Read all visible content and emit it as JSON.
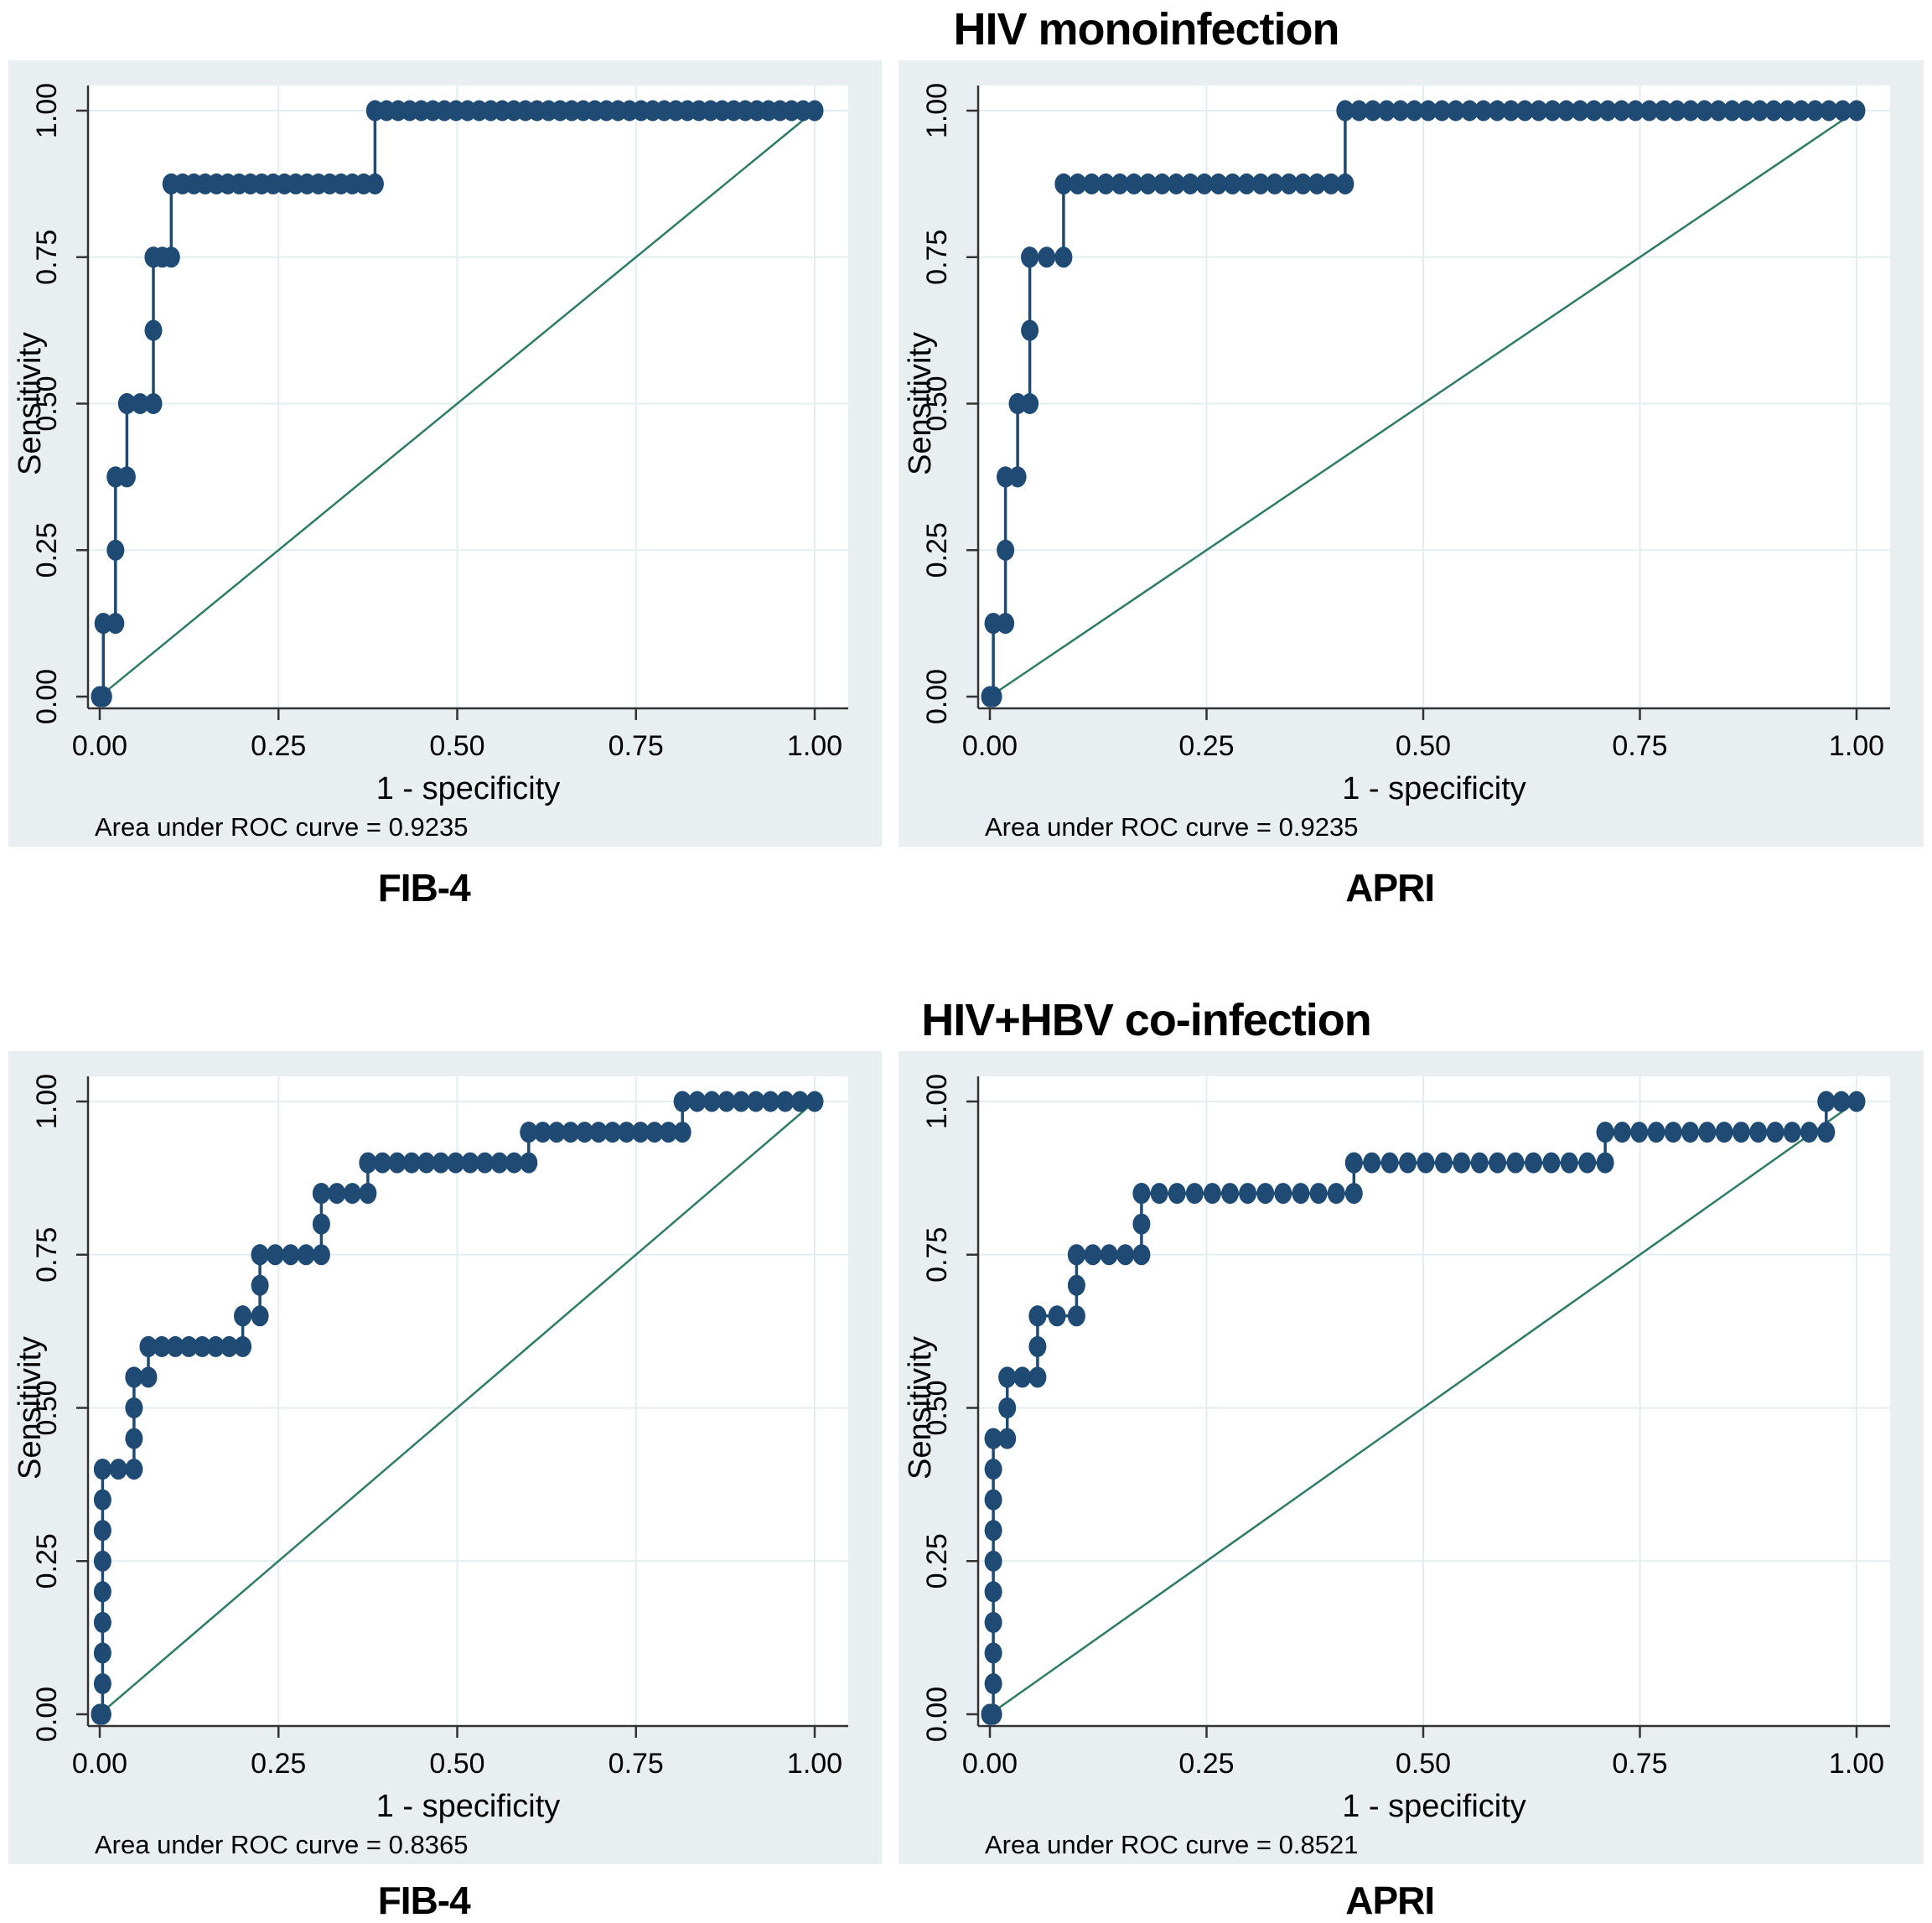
{
  "figure": {
    "rows": [
      {
        "title": "HIV monoinfection",
        "panels": [
          {
            "label": "FIB-4",
            "auc_label": "Area under ROC curve = 0.9235",
            "auc": 0.9235
          },
          {
            "label": "APRI",
            "auc_label": "Area under ROC curve = 0.9235",
            "auc": 0.9235
          }
        ]
      },
      {
        "title": "HIV+HBV co-infection",
        "panels": [
          {
            "label": "FIB-4",
            "auc_label": "Area under ROC curve = 0.8365",
            "auc": 0.8365
          },
          {
            "label": "APRI",
            "auc_label": "Area under ROC curve = 0.8521",
            "auc": 0.8521
          }
        ]
      }
    ]
  },
  "colors": {
    "curve": "#1e4a73",
    "reference": "#2e7c64",
    "panel_bg": "#e9eef1",
    "plot_bg": "#ffffff",
    "grid": "#e2eef0",
    "axis": "#333333",
    "text": "#000000"
  },
  "chart_data": [
    {
      "id": "mono-fib4",
      "group": "HIV monoinfection",
      "panel": "FIB-4",
      "type": "line",
      "subtype": "roc-step",
      "title": "",
      "xlabel": "1 - specificity",
      "ylabel": "Sensitivity",
      "xlim": [
        0,
        1
      ],
      "ylim": [
        0,
        1
      ],
      "grid": true,
      "xticks": {
        "values": [
          0,
          0.25,
          0.5,
          0.75,
          1
        ],
        "labels": [
          "0.00",
          "0.25",
          "0.50",
          "0.75",
          "1.00"
        ]
      },
      "yticks": {
        "values": [
          0,
          0.25,
          0.5,
          0.75,
          1
        ],
        "labels": [
          "0.00",
          "0.25",
          "0.50",
          "0.75",
          "1.00"
        ]
      },
      "auc": 0.9235,
      "auc_label": "Area under ROC curve = 0.9235",
      "reference_line": [
        [
          0,
          0
        ],
        [
          1,
          1
        ]
      ],
      "marker_step_y": 0.125,
      "marker_dx": 0.016,
      "steps": [
        [
          0,
          0
        ],
        [
          0.005,
          0
        ],
        [
          0.005,
          0.125
        ],
        [
          0.022,
          0.125
        ],
        [
          0.022,
          0.375
        ],
        [
          0.038,
          0.375
        ],
        [
          0.038,
          0.5
        ],
        [
          0.075,
          0.5
        ],
        [
          0.075,
          0.75
        ],
        [
          0.1,
          0.75
        ],
        [
          0.1,
          0.875
        ],
        [
          0.385,
          0.875
        ],
        [
          0.385,
          1
        ],
        [
          1,
          1
        ]
      ]
    },
    {
      "id": "mono-apri",
      "group": "HIV monoinfection",
      "panel": "APRI",
      "type": "line",
      "subtype": "roc-step",
      "title": "",
      "xlabel": "1 - specificity",
      "ylabel": "Sensitivity",
      "xlim": [
        0,
        1
      ],
      "ylim": [
        0,
        1
      ],
      "grid": true,
      "xticks": {
        "values": [
          0,
          0.25,
          0.5,
          0.75,
          1
        ],
        "labels": [
          "0.00",
          "0.25",
          "0.50",
          "0.75",
          "1.00"
        ]
      },
      "yticks": {
        "values": [
          0,
          0.25,
          0.5,
          0.75,
          1
        ],
        "labels": [
          "0.00",
          "0.25",
          "0.50",
          "0.75",
          "1.00"
        ]
      },
      "auc": 0.9235,
      "auc_label": "Area under ROC curve = 0.9235",
      "reference_line": [
        [
          0,
          0
        ],
        [
          1,
          1
        ]
      ],
      "marker_step_y": 0.125,
      "marker_dx": 0.016,
      "steps": [
        [
          0,
          0
        ],
        [
          0.004,
          0
        ],
        [
          0.004,
          0.125
        ],
        [
          0.018,
          0.125
        ],
        [
          0.018,
          0.375
        ],
        [
          0.032,
          0.375
        ],
        [
          0.032,
          0.5
        ],
        [
          0.046,
          0.5
        ],
        [
          0.046,
          0.75
        ],
        [
          0.085,
          0.75
        ],
        [
          0.085,
          0.875
        ],
        [
          0.41,
          0.875
        ],
        [
          0.41,
          1
        ],
        [
          1,
          1
        ]
      ]
    },
    {
      "id": "co-fib4",
      "group": "HIV+HBV co-infection",
      "panel": "FIB-4",
      "type": "line",
      "subtype": "roc-step",
      "title": "",
      "xlabel": "1 - specificity",
      "ylabel": "Sensitivity",
      "xlim": [
        0,
        1
      ],
      "ylim": [
        0,
        1
      ],
      "grid": true,
      "xticks": {
        "values": [
          0,
          0.25,
          0.5,
          0.75,
          1
        ],
        "labels": [
          "0.00",
          "0.25",
          "0.50",
          "0.75",
          "1.00"
        ]
      },
      "yticks": {
        "values": [
          0,
          0.25,
          0.5,
          0.75,
          1
        ],
        "labels": [
          "0.00",
          "0.25",
          "0.50",
          "0.75",
          "1.00"
        ]
      },
      "auc": 0.8365,
      "auc_label": "Area under ROC curve = 0.8365",
      "reference_line": [
        [
          0,
          0
        ],
        [
          1,
          1
        ]
      ],
      "marker_step_y": 0.05,
      "marker_dx": 0.02,
      "steps": [
        [
          0,
          0
        ],
        [
          0.004,
          0
        ],
        [
          0.004,
          0.4
        ],
        [
          0.048,
          0.4
        ],
        [
          0.048,
          0.55
        ],
        [
          0.068,
          0.55
        ],
        [
          0.068,
          0.6
        ],
        [
          0.2,
          0.6
        ],
        [
          0.2,
          0.65
        ],
        [
          0.224,
          0.65
        ],
        [
          0.224,
          0.75
        ],
        [
          0.31,
          0.75
        ],
        [
          0.31,
          0.85
        ],
        [
          0.375,
          0.85
        ],
        [
          0.375,
          0.9
        ],
        [
          0.6,
          0.9
        ],
        [
          0.6,
          0.95
        ],
        [
          0.815,
          0.95
        ],
        [
          0.815,
          1
        ],
        [
          1,
          1
        ]
      ]
    },
    {
      "id": "co-apri",
      "group": "HIV+HBV co-infection",
      "panel": "APRI",
      "type": "line",
      "subtype": "roc-step",
      "title": "",
      "xlabel": "1 - specificity",
      "ylabel": "Sensitivity",
      "xlim": [
        0,
        1
      ],
      "ylim": [
        0,
        1
      ],
      "grid": true,
      "xticks": {
        "values": [
          0,
          0.25,
          0.5,
          0.75,
          1
        ],
        "labels": [
          "0.00",
          "0.25",
          "0.50",
          "0.75",
          "1.00"
        ]
      },
      "yticks": {
        "values": [
          0,
          0.25,
          0.5,
          0.75,
          1
        ],
        "labels": [
          "0.00",
          "0.25",
          "0.50",
          "0.75",
          "1.00"
        ]
      },
      "auc": 0.8521,
      "auc_label": "Area under ROC curve = 0.8521",
      "reference_line": [
        [
          0,
          0
        ],
        [
          1,
          1
        ]
      ],
      "marker_step_y": 0.05,
      "marker_dx": 0.02,
      "steps": [
        [
          0,
          0
        ],
        [
          0.004,
          0
        ],
        [
          0.004,
          0.45
        ],
        [
          0.02,
          0.45
        ],
        [
          0.02,
          0.55
        ],
        [
          0.055,
          0.55
        ],
        [
          0.055,
          0.65
        ],
        [
          0.1,
          0.65
        ],
        [
          0.1,
          0.75
        ],
        [
          0.175,
          0.75
        ],
        [
          0.175,
          0.85
        ],
        [
          0.42,
          0.85
        ],
        [
          0.42,
          0.9
        ],
        [
          0.71,
          0.9
        ],
        [
          0.71,
          0.95
        ],
        [
          0.965,
          0.95
        ],
        [
          0.965,
          1
        ],
        [
          1,
          1
        ]
      ]
    }
  ]
}
